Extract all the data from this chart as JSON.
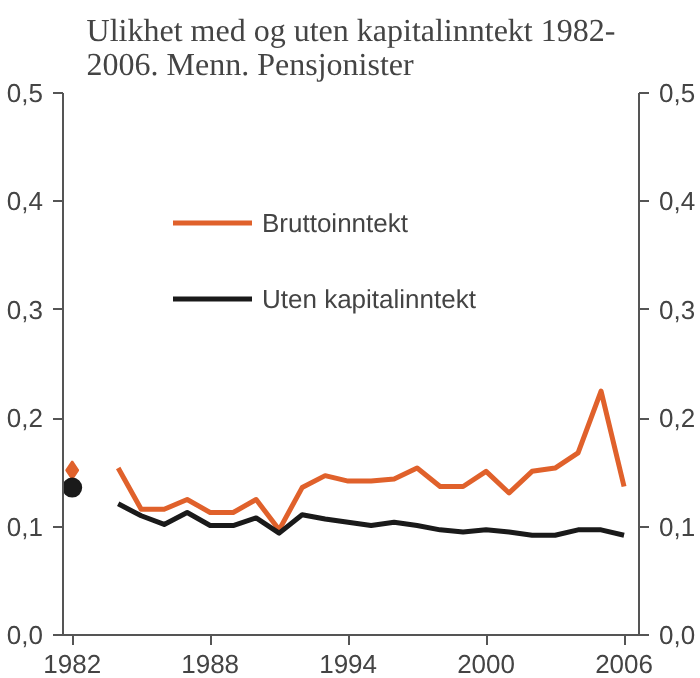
{
  "chart_data": {
    "type": "line",
    "title": "Ulikhet med og uten kapitalinntekt 1982-2006. Menn. Pensjonister",
    "x": [
      1984,
      1985,
      1986,
      1987,
      1988,
      1989,
      1990,
      1991,
      1992,
      1993,
      1994,
      1995,
      1996,
      1997,
      1998,
      1999,
      2000,
      2001,
      2002,
      2003,
      2004,
      2005,
      2006
    ],
    "series": [
      {
        "name": "Bruttoinntekt",
        "color": "#e0612b",
        "values": [
          0.154,
          0.116,
          0.116,
          0.125,
          0.113,
          0.113,
          0.125,
          0.097,
          0.136,
          0.147,
          0.142,
          0.142,
          0.144,
          0.154,
          0.137,
          0.137,
          0.151,
          0.131,
          0.151,
          0.154,
          0.168,
          0.225,
          0.137
        ]
      },
      {
        "name": "Uten kapitalinntekt",
        "color": "#1a1a1a",
        "values": [
          0.121,
          0.11,
          0.102,
          0.113,
          0.101,
          0.101,
          0.108,
          0.094,
          0.111,
          0.107,
          0.104,
          0.101,
          0.104,
          0.101,
          0.097,
          0.095,
          0.097,
          0.095,
          0.092,
          0.092,
          0.097,
          0.097,
          0.092
        ]
      },
      {
        "type": "scatter",
        "marker": "diamond",
        "color": "#e0612b",
        "x": [
          1982
        ],
        "values": [
          0.152
        ]
      },
      {
        "type": "scatter",
        "marker": "circle",
        "color": "#1a1a1a",
        "x": [
          1982
        ],
        "values": [
          0.136
        ]
      }
    ],
    "xlim": [
      1981.6,
      2006.65
    ],
    "xticks": [
      1982,
      1988,
      1994,
      2000,
      2006
    ],
    "ylim": [
      0,
      0.5
    ],
    "yticks": [
      {
        "value": 0,
        "label": "0,0"
      },
      {
        "value": 0.1,
        "label": "0,1"
      },
      {
        "value": 0.2,
        "label": "0,2"
      },
      {
        "value": 0.3,
        "label": "0,3"
      },
      {
        "value": 0.4,
        "label": "0,4"
      },
      {
        "value": 0.5,
        "label": "0,5"
      }
    ],
    "y2lim": [
      0,
      0.5
    ],
    "y2ticks": [
      {
        "value": 0,
        "label": "0,0"
      },
      {
        "value": 0.1,
        "label": "0,1"
      },
      {
        "value": 0.2,
        "label": "0,2"
      },
      {
        "value": 0.3,
        "label": "0,3"
      },
      {
        "value": 0.4,
        "label": "0,4"
      },
      {
        "value": 0.5,
        "label": "0,5"
      }
    ],
    "grid": false,
    "legend": "top left"
  }
}
